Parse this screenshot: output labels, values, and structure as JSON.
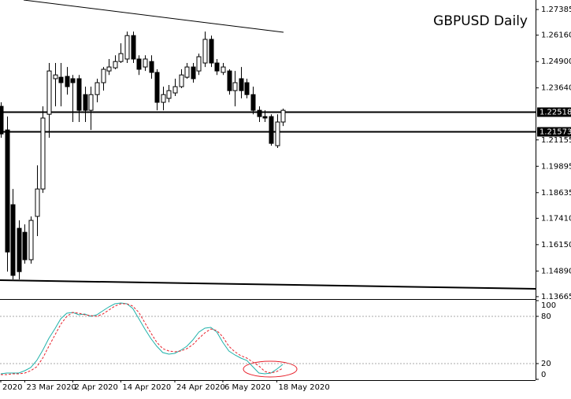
{
  "chart_data": [
    {
      "type": "candlestick",
      "title": "GBPUSD Daily",
      "open": [
        1.2276,
        1.2163,
        1.1806,
        1.1693,
        1.1674,
        1.1543,
        1.175,
        1.1881,
        1.2238,
        1.2408,
        1.2415,
        1.2419,
        1.2408,
        1.2408,
        1.2332,
        1.2257,
        1.2332,
        1.2389,
        1.2445,
        1.246,
        1.249,
        1.2502,
        1.2614,
        1.2502,
        1.2464,
        1.249,
        1.2438,
        1.2295,
        1.2314,
        1.234,
        1.237,
        1.2415,
        1.2464,
        1.2445,
        1.2483,
        1.2596,
        1.2483,
        1.2438,
        1.2445,
        1.2351,
        1.2408,
        1.2389,
        1.2332,
        1.2257,
        1.2227,
        1.2227,
        1.2088,
        1.2201
      ],
      "high": [
        1.2295,
        1.2227,
        1.1881,
        1.1731,
        1.1712,
        1.175,
        1.1994,
        1.2276,
        1.2483,
        1.2483,
        1.2483,
        1.2464,
        1.2426,
        1.2426,
        1.237,
        1.237,
        1.2408,
        1.2464,
        1.2502,
        1.252,
        1.2577,
        1.2633,
        1.2633,
        1.252,
        1.252,
        1.252,
        1.2453,
        1.237,
        1.2378,
        1.2408,
        1.2453,
        1.2483,
        1.2483,
        1.2528,
        1.2633,
        1.2614,
        1.2502,
        1.2483,
        1.2453,
        1.2445,
        1.2464,
        1.2408,
        1.237,
        1.2276,
        1.2257,
        1.2238,
        1.2238,
        1.2265
      ],
      "low": [
        1.2126,
        1.1486,
        1.1449,
        1.1449,
        1.1524,
        1.1524,
        1.1656,
        1.1862,
        1.2126,
        1.2276,
        1.2276,
        1.2332,
        1.2201,
        1.2201,
        1.2201,
        1.2163,
        1.2295,
        1.2351,
        1.2426,
        1.2453,
        1.2483,
        1.2483,
        1.2483,
        1.2426,
        1.2445,
        1.2408,
        1.2257,
        1.2257,
        1.2295,
        1.2325,
        1.2363,
        1.2408,
        1.2389,
        1.2426,
        1.2464,
        1.2464,
        1.2426,
        1.2426,
        1.2332,
        1.2276,
        1.2314,
        1.2314,
        1.2238,
        1.2201,
        1.2201,
        1.2088,
        1.2077,
        1.2182
      ],
      "close": [
        1.2144,
        1.158,
        1.1468,
        1.1486,
        1.1543,
        1.1731,
        1.1881,
        1.222,
        1.2445,
        1.2426,
        1.2389,
        1.237,
        1.2389,
        1.2257,
        1.2257,
        1.2332,
        1.2389,
        1.2453,
        1.2464,
        1.249,
        1.2528,
        1.2614,
        1.2502,
        1.2453,
        1.2502,
        1.2438,
        1.2295,
        1.2332,
        1.2351,
        1.237,
        1.2426,
        1.2464,
        1.2408,
        1.2513,
        1.2596,
        1.2483,
        1.2445,
        1.2464,
        1.2351,
        1.2389,
        1.2351,
        1.2332,
        1.2257,
        1.2227,
        1.222,
        1.2099,
        1.2201,
        1.2257
      ],
      "levels": [
        1.22518,
        1.21573
      ],
      "ylim": [
        1.1355,
        1.2784
      ],
      "yticks": [
        1.27385,
        {
          "value": 1.2616,
          "label": "1.26160"
        },
        {
          "value": 1.249,
          "label": "1.24900"
        },
        {
          "value": 1.2364,
          "label": "1.23640"
        },
        1.21155,
        1.19895,
        1.18635,
        {
          "value": 1.1741,
          "label": "1.17410"
        },
        {
          "value": 1.1615,
          "label": "1.16150"
        },
        {
          "value": 1.1489,
          "label": "1.14890"
        },
        1.13665
      ],
      "up_color": "#ffffff",
      "down_color": "#000000"
    },
    {
      "type": "line",
      "series": [
        {
          "color": "#20b2aa",
          "style": "solid",
          "values": [
            7,
            8,
            8,
            8,
            11,
            15,
            24,
            37,
            52,
            64,
            77,
            84,
            85,
            82,
            83,
            80,
            82,
            87,
            92,
            96,
            97,
            96,
            90,
            77,
            64,
            52,
            42,
            34,
            32,
            33,
            37,
            42,
            50,
            60,
            65,
            66,
            60,
            47,
            36,
            31,
            27,
            24,
            16,
            8,
            7,
            8,
            13,
            19
          ]
        },
        {
          "color": "#e8202a",
          "style": "dashed",
          "values": [
            6,
            6,
            7,
            7,
            8,
            11,
            16,
            27,
            42,
            56,
            70,
            80,
            85,
            84,
            82,
            81,
            80,
            83,
            88,
            93,
            96,
            96,
            93,
            85,
            72,
            59,
            47,
            39,
            36,
            35,
            36,
            39,
            44,
            52,
            59,
            64,
            62,
            54,
            42,
            35,
            30,
            27,
            22,
            17,
            10,
            8,
            10,
            14
          ]
        }
      ],
      "ylim": [
        0,
        100
      ],
      "yticks": [
        0,
        20,
        80,
        100
      ],
      "xticks": [
        {
          "value": 0,
          "label": "2020"
        },
        {
          "value": 4,
          "label": "23 Mar 2020"
        },
        {
          "value": 12,
          "label": "2 Apr 2020"
        },
        {
          "value": 20,
          "label": "14 Apr 2020"
        },
        {
          "value": 29,
          "label": "24 Apr 2020"
        },
        {
          "value": 37,
          "label": "6 May 2020"
        },
        {
          "value": 46,
          "label": "18 May 2020"
        }
      ]
    }
  ]
}
